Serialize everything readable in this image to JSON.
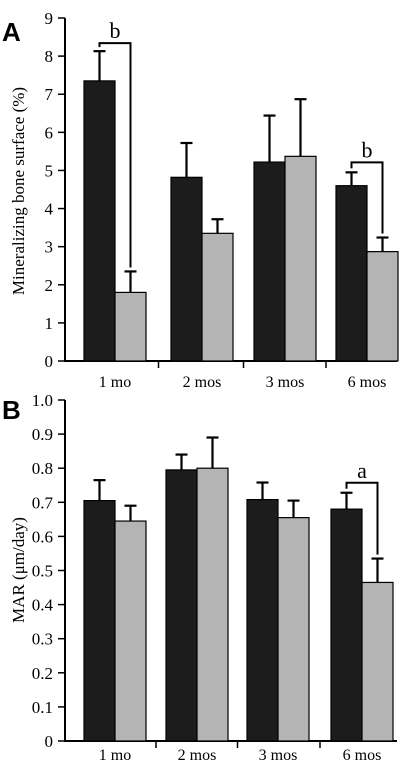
{
  "colors": {
    "dark_bar": "#1c1c1c",
    "light_bar": "#b4b4b4",
    "axis": "#000000"
  },
  "chart_data": [
    {
      "type": "bar",
      "panel": "A",
      "ylabel": "Mineralizing bone surface (%)",
      "categories": [
        "1 mo",
        "2 mos",
        "3 mos",
        "6 mos"
      ],
      "ylim": [
        0,
        9
      ],
      "yticks": [
        0,
        1,
        2,
        3,
        4,
        5,
        6,
        7,
        8,
        9
      ],
      "series": [
        {
          "values": [
            7.35,
            4.82,
            5.22,
            4.6
          ],
          "errors": [
            0.78,
            0.9,
            1.22,
            0.35
          ]
        },
        {
          "values": [
            1.8,
            3.35,
            5.37,
            2.87
          ],
          "errors": [
            0.55,
            0.37,
            1.5,
            0.37
          ]
        }
      ],
      "annotations": [
        {
          "text": "b",
          "category_index": 0
        },
        {
          "text": "b",
          "category_index": 3
        }
      ]
    },
    {
      "type": "bar",
      "panel": "B",
      "ylabel": "MAR (μm/day)",
      "categories": [
        "1 mo",
        "2 mos",
        "3 mos",
        "6 mos"
      ],
      "ylim": [
        0,
        1.0
      ],
      "yticks": [
        "0",
        "0.1",
        "0.2",
        "0.3",
        "0.4",
        "0.5",
        "0.6",
        "0.7",
        "0.8",
        "0.9",
        "1.0"
      ],
      "series": [
        {
          "values": [
            0.705,
            0.795,
            0.708,
            0.68
          ],
          "errors": [
            0.06,
            0.045,
            0.05,
            0.048
          ]
        },
        {
          "values": [
            0.645,
            0.8,
            0.655,
            0.465
          ],
          "errors": [
            0.045,
            0.09,
            0.05,
            0.07
          ]
        }
      ],
      "annotations": [
        {
          "text": "a",
          "category_index": 3
        }
      ]
    }
  ]
}
